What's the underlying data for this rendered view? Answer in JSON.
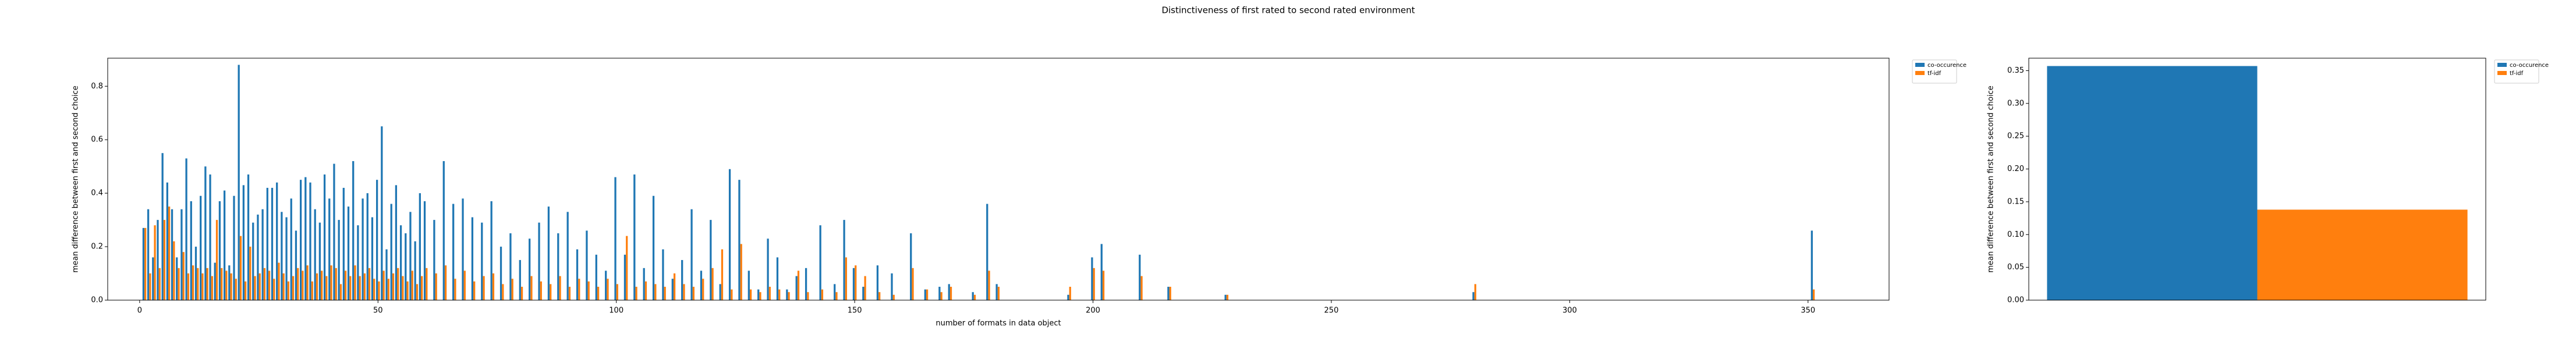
{
  "title": "Distinctiveness of first rated to second rated environment",
  "chart_data": [
    {
      "type": "bar",
      "xlabel": "number of formats in data object",
      "ylabel": "mean difference between first and second choice",
      "x": [
        1,
        2,
        3,
        4,
        5,
        6,
        7,
        8,
        9,
        10,
        11,
        12,
        13,
        14,
        15,
        16,
        17,
        18,
        19,
        20,
        21,
        22,
        23,
        24,
        25,
        26,
        27,
        28,
        29,
        30,
        31,
        32,
        33,
        34,
        35,
        36,
        37,
        38,
        39,
        40,
        41,
        42,
        43,
        44,
        45,
        46,
        47,
        48,
        49,
        50,
        51,
        52,
        53,
        54,
        55,
        56,
        57,
        58,
        59,
        60,
        62,
        64,
        66,
        68,
        70,
        72,
        74,
        76,
        78,
        80,
        82,
        84,
        86,
        88,
        90,
        92,
        94,
        96,
        98,
        100,
        102,
        104,
        106,
        108,
        110,
        112,
        114,
        116,
        118,
        120,
        122,
        124,
        126,
        128,
        130,
        132,
        134,
        136,
        138,
        140,
        143,
        146,
        148,
        150,
        152,
        155,
        158,
        162,
        165,
        168,
        170,
        175,
        178,
        180,
        195,
        200,
        202,
        210,
        216,
        228,
        280,
        351
      ],
      "series": [
        {
          "name": "co-occurence",
          "color": "#1f77b4",
          "values": [
            0.27,
            0.34,
            0.16,
            0.3,
            0.55,
            0.44,
            0.34,
            0.16,
            0.34,
            0.53,
            0.37,
            0.2,
            0.39,
            0.5,
            0.47,
            0.14,
            0.37,
            0.41,
            0.13,
            0.39,
            0.88,
            0.43,
            0.47,
            0.29,
            0.32,
            0.34,
            0.42,
            0.42,
            0.44,
            0.33,
            0.31,
            0.38,
            0.26,
            0.45,
            0.46,
            0.44,
            0.34,
            0.29,
            0.47,
            0.38,
            0.51,
            0.3,
            0.42,
            0.35,
            0.52,
            0.28,
            0.38,
            0.4,
            0.31,
            0.45,
            0.65,
            0.19,
            0.36,
            0.43,
            0.28,
            0.25,
            0.33,
            0.22,
            0.4,
            0.37,
            0.3,
            0.52,
            0.36,
            0.38,
            0.31,
            0.29,
            0.37,
            0.2,
            0.25,
            0.15,
            0.23,
            0.29,
            0.35,
            0.25,
            0.33,
            0.19,
            0.26,
            0.17,
            0.11,
            0.46,
            0.17,
            0.47,
            0.12,
            0.39,
            0.19,
            0.08,
            0.15,
            0.34,
            0.11,
            0.3,
            0.06,
            0.49,
            0.45,
            0.11,
            0.04,
            0.23,
            0.16,
            0.04,
            0.09,
            0.12,
            0.28,
            0.06,
            0.3,
            0.12,
            0.05,
            0.13,
            0.1,
            0.25,
            0.04,
            0.05,
            0.06,
            0.03,
            0.36,
            0.06,
            0.02,
            0.16,
            0.21,
            0.17,
            0.05,
            0.02,
            0.03,
            0.26
          ]
        },
        {
          "name": "tf-idf",
          "color": "#ff7f0e",
          "values": [
            0.27,
            0.1,
            0.28,
            0.12,
            0.3,
            0.35,
            0.22,
            0.12,
            0.18,
            0.1,
            0.13,
            0.12,
            0.1,
            0.12,
            0.09,
            0.3,
            0.12,
            0.11,
            0.1,
            0.08,
            0.24,
            0.07,
            0.2,
            0.09,
            0.1,
            0.12,
            0.11,
            0.08,
            0.14,
            0.1,
            0.07,
            0.09,
            0.12,
            0.11,
            0.13,
            0.07,
            0.1,
            0.11,
            0.09,
            0.13,
            0.12,
            0.06,
            0.11,
            0.09,
            0.13,
            0.09,
            0.1,
            0.12,
            0.08,
            0.07,
            0.11,
            0.08,
            0.1,
            0.12,
            0.09,
            0.07,
            0.11,
            0.06,
            0.09,
            0.12,
            0.1,
            0.13,
            0.08,
            0.11,
            0.07,
            0.09,
            0.1,
            0.06,
            0.08,
            0.05,
            0.09,
            0.07,
            0.06,
            0.09,
            0.05,
            0.08,
            0.07,
            0.05,
            0.08,
            0.06,
            0.24,
            0.05,
            0.07,
            0.06,
            0.05,
            0.1,
            0.06,
            0.05,
            0.08,
            0.12,
            0.19,
            0.04,
            0.21,
            0.04,
            0.03,
            0.05,
            0.04,
            0.03,
            0.11,
            0.03,
            0.04,
            0.03,
            0.16,
            0.13,
            0.09,
            0.03,
            0.02,
            0.12,
            0.04,
            0.03,
            0.05,
            0.02,
            0.11,
            0.05,
            0.05,
            0.12,
            0.11,
            0.09,
            0.05,
            0.02,
            0.06,
            0.04
          ]
        }
      ],
      "xlim": [
        -6.7,
        367
      ],
      "xticks": [
        0,
        50,
        100,
        150,
        200,
        250,
        300,
        350
      ],
      "ylim": [
        0,
        0.905
      ],
      "yticks": [
        {
          "value": 0,
          "label": "0.0"
        },
        0.2,
        0.4,
        0.6,
        0.8
      ],
      "legend": "outside-upper-right"
    },
    {
      "type": "bar",
      "ylabel": "mean difference between first and second choice",
      "categories": [
        null
      ],
      "series": [
        {
          "name": "co-occurence",
          "color": "#1f77b4",
          "values": [
            0.357
          ]
        },
        {
          "name": "tf-idf",
          "color": "#ff7f0e",
          "values": [
            0.138
          ]
        }
      ],
      "ylim": [
        0,
        0.369
      ],
      "yticks": [
        {
          "value": 0,
          "label": "0.00"
        },
        0.05,
        {
          "value": 0.1,
          "label": "0.10"
        },
        0.15,
        {
          "value": 0.2,
          "label": "0.20"
        },
        0.25,
        {
          "value": 0.3,
          "label": "0.30"
        },
        0.35
      ],
      "legend": "outside-upper-right"
    }
  ]
}
